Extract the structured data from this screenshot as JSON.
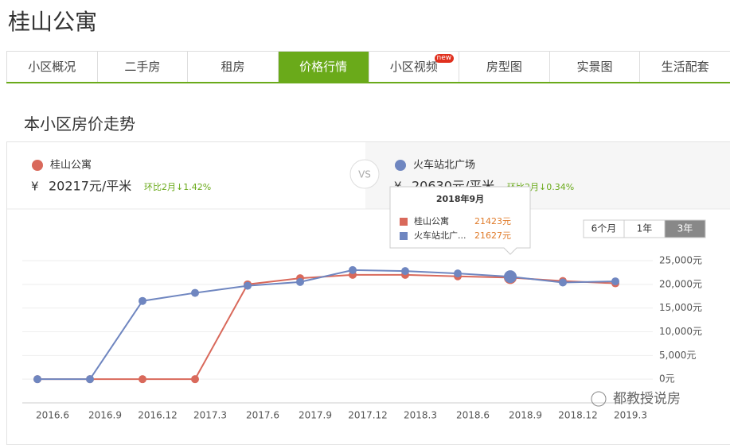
{
  "header": {
    "title": "桂山公寓"
  },
  "tabs": {
    "items": [
      "小区概况",
      "二手房",
      "租房",
      "价格行情",
      "小区视频",
      "房型图",
      "实景图",
      "生活配套"
    ],
    "active": 3,
    "badge_tab": 4,
    "badge": "new"
  },
  "section_title": "本小区房价走势",
  "compare": [
    {
      "name": "桂山公寓",
      "currency": "¥",
      "price": "20217元/平米",
      "change": "环比2月↓1.42%",
      "color": "#d9695b"
    },
    {
      "name": "火车站北广场",
      "currency": "¥",
      "price": "20630元/平米",
      "change": "环比2月↓0.34%",
      "color": "#6f86c0"
    }
  ],
  "vs": "VS",
  "range_buttons": {
    "items": [
      "6个月",
      "1年",
      "3年"
    ],
    "active": 2
  },
  "tooltip": {
    "title": "2018年9月",
    "index": 9,
    "rows": [
      {
        "name": "桂山公寓",
        "value": "21423元"
      },
      {
        "name": "火车站北广...",
        "value": "21627元"
      }
    ]
  },
  "watermark": "都教授说房",
  "chart_data": {
    "type": "line",
    "categories": [
      "2016.6",
      "2016.9",
      "2016.12",
      "2017.3",
      "2017.6",
      "2017.9",
      "2017.12",
      "2018.3",
      "2018.6",
      "2018.9",
      "2018.12",
      "2019.3"
    ],
    "series": [
      {
        "name": "桂山公寓",
        "color": "#d9695b",
        "values": [
          0,
          0,
          0,
          0,
          20000,
          21300,
          22000,
          22000,
          21700,
          21423,
          20700,
          20217
        ]
      },
      {
        "name": "火车站北广场",
        "color": "#6f86c0",
        "values": [
          0,
          0,
          16500,
          18200,
          19700,
          20500,
          23000,
          22800,
          22300,
          21627,
          20400,
          20630
        ]
      }
    ],
    "ylim": [
      -5000,
      25000
    ],
    "yticks": [
      {
        "value": 0,
        "label": "0元"
      },
      {
        "value": 5000,
        "label": "5,000元"
      },
      {
        "value": 10000,
        "label": "10,000元"
      },
      {
        "value": 15000,
        "label": "15,000元"
      },
      {
        "value": 20000,
        "label": "20,000元"
      },
      {
        "value": 25000,
        "label": "25,000元"
      }
    ],
    "grid": true
  }
}
